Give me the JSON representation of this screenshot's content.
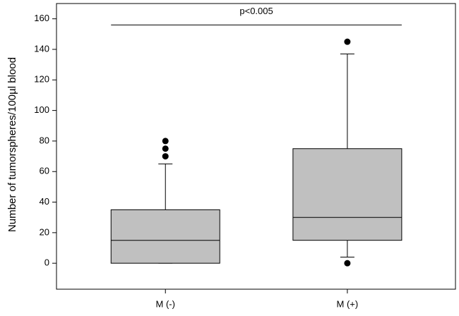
{
  "chart_data": {
    "type": "box",
    "ylabel": "Number of tumorspheres/100µl blood",
    "categories": [
      "M (-)",
      "M (+)"
    ],
    "whisker_low": [
      0,
      4
    ],
    "q1": [
      0,
      15
    ],
    "median": [
      15,
      30
    ],
    "q3": [
      35,
      75
    ],
    "whisker_high": [
      65,
      137
    ],
    "outliers": [
      [
        70,
        75,
        80
      ],
      [
        0,
        145
      ]
    ],
    "color": "#c0c0c0",
    "ylim": [
      -17,
      170
    ],
    "yticks": [
      0,
      20,
      40,
      60,
      80,
      100,
      120,
      140,
      160
    ],
    "annotation": {
      "text": "p<0.005",
      "y": 156
    }
  }
}
